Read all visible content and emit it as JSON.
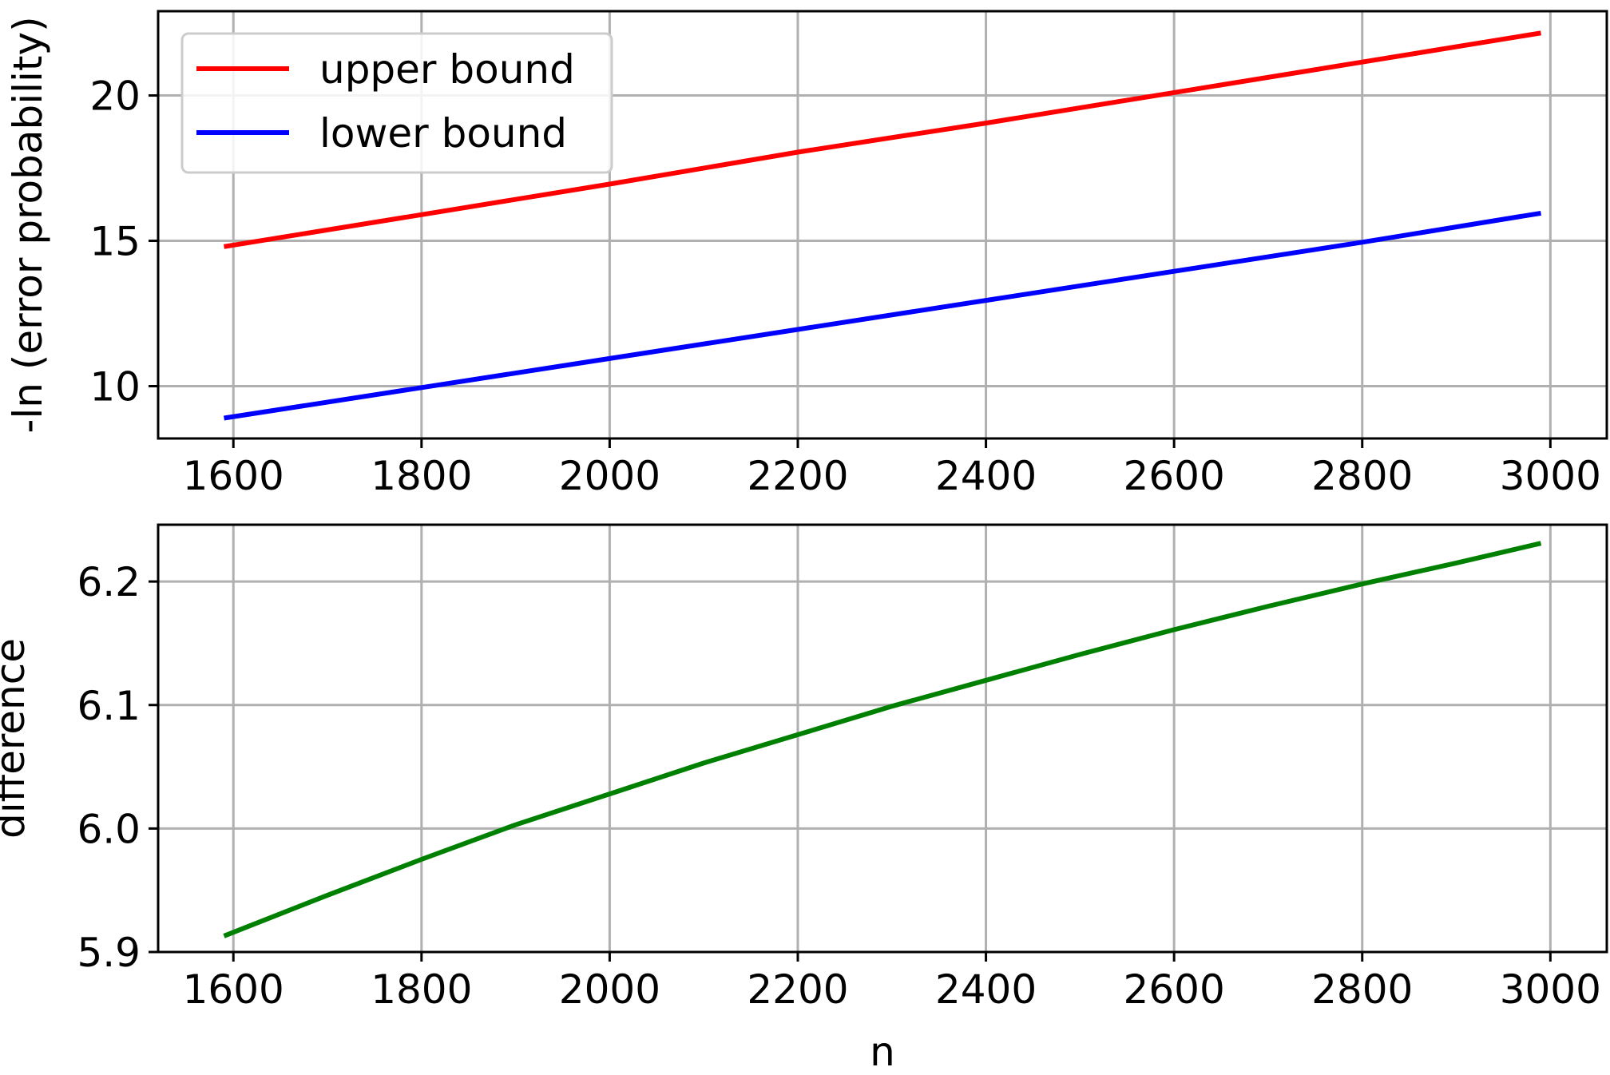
{
  "chart_data": [
    {
      "type": "line",
      "title": "",
      "xlabel": "",
      "ylabel": "-ln (error probability)",
      "xlim": [
        1520,
        3060
      ],
      "ylim": [
        8.2,
        22.9
      ],
      "xticks": [
        1600,
        1800,
        2000,
        2200,
        2400,
        2600,
        2800,
        3000
      ],
      "yticks": [
        10,
        15,
        20
      ],
      "grid": true,
      "legend": "top-left",
      "series": [
        {
          "name": "upper bound",
          "color": "#ff0000",
          "x": [
            1590,
            1800,
            2000,
            2200,
            2400,
            2600,
            2800,
            2990
          ],
          "y": [
            14.8,
            15.9,
            16.95,
            18.05,
            19.05,
            20.1,
            21.15,
            22.15
          ]
        },
        {
          "name": "lower bound",
          "color": "#0000ff",
          "x": [
            1590,
            1800,
            2000,
            2200,
            2400,
            2600,
            2800,
            2990
          ],
          "y": [
            8.9,
            9.95,
            10.95,
            11.95,
            12.95,
            13.95,
            14.95,
            15.95
          ]
        }
      ]
    },
    {
      "type": "line",
      "title": "",
      "xlabel": "n",
      "ylabel": "difference",
      "xlim": [
        1520,
        3060
      ],
      "ylim": [
        5.9,
        6.246
      ],
      "xticks": [
        1600,
        1800,
        2000,
        2200,
        2400,
        2600,
        2800,
        3000
      ],
      "yticks": [
        5.9,
        6.0,
        6.1,
        6.2
      ],
      "grid": true,
      "series": [
        {
          "color": "#008000",
          "x": [
            1590,
            1700,
            1800,
            1900,
            2000,
            2100,
            2200,
            2300,
            2400,
            2500,
            2600,
            2700,
            2800,
            2900,
            2990
          ],
          "y": [
            5.913,
            5.946,
            5.975,
            6.003,
            6.028,
            6.053,
            6.076,
            6.099,
            6.12,
            6.141,
            6.161,
            6.18,
            6.198,
            6.215,
            6.231
          ]
        }
      ]
    }
  ]
}
